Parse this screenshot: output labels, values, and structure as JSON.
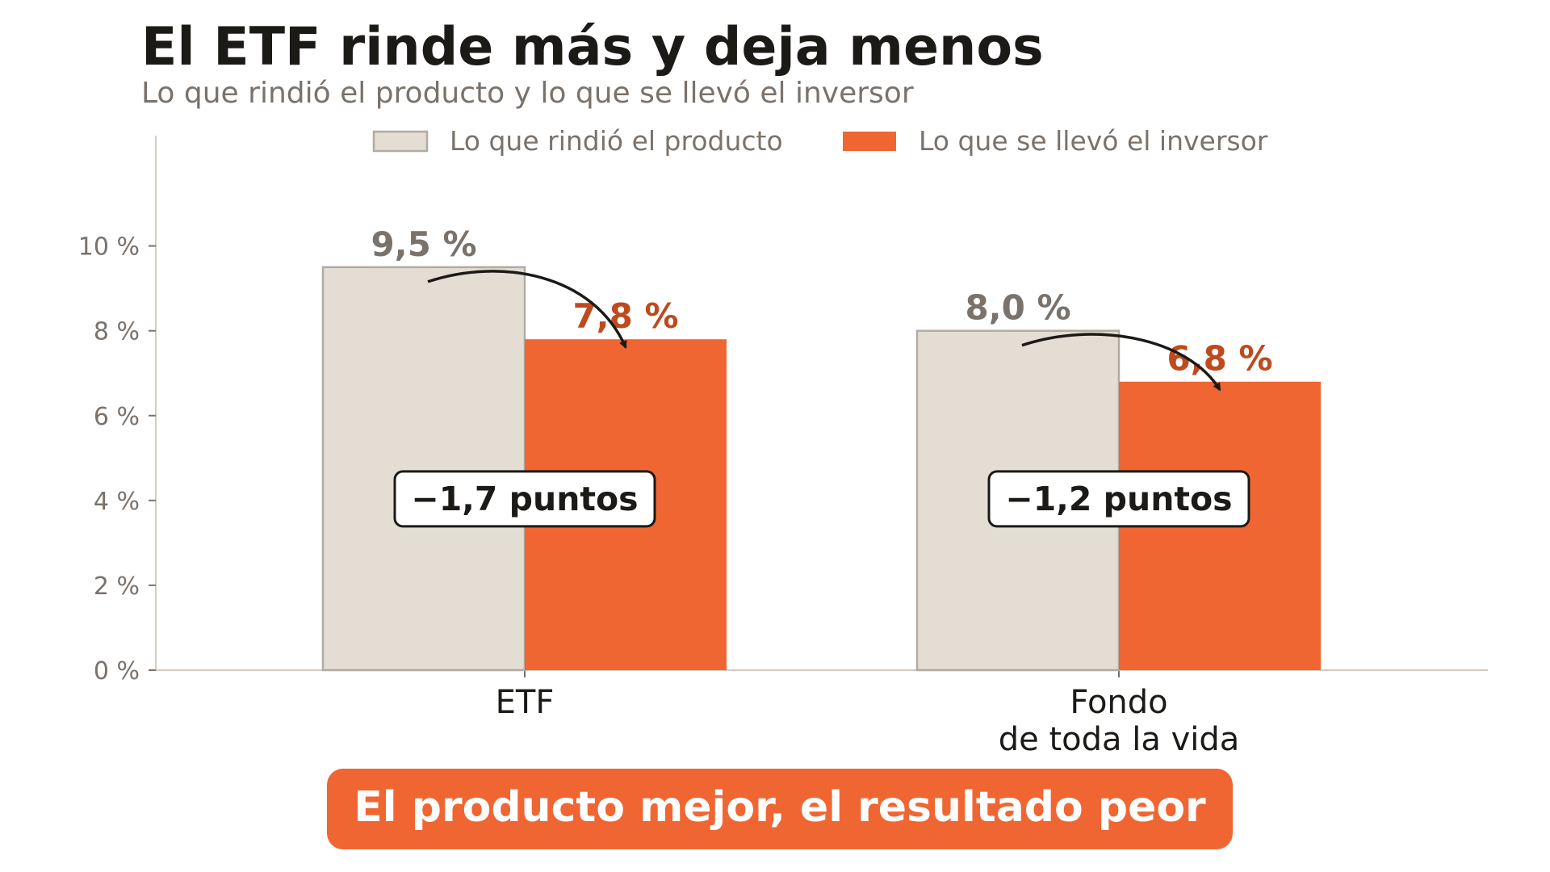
{
  "header": {
    "title": "El ETF rinde más y deja menos",
    "subtitle": "Lo que rindió el producto y lo que se llevó el inversor"
  },
  "colors": {
    "product": "#e4ddd3",
    "product_edge": "#b3aba0",
    "investor": "#f06633",
    "investor_label": "#bf4a1e",
    "product_label": "#7a726b",
    "banner": "#f06633",
    "arrow": "#1c1a17"
  },
  "chart_data": {
    "type": "bar",
    "categories": [
      [
        "ETF"
      ],
      [
        "Fondo",
        "de toda la vida"
      ]
    ],
    "series": [
      {
        "name": "Lo que rindió el producto",
        "values": [
          9.5,
          8.0
        ],
        "labels": [
          "9,5 %",
          "8,0 %"
        ]
      },
      {
        "name": "Lo que se llevó el inversor",
        "values": [
          7.8,
          6.8
        ],
        "labels": [
          "7,8 %",
          "6,8 %"
        ]
      }
    ],
    "differences": [
      "−1,7 puntos",
      "−1,2 puntos"
    ],
    "yticks": [
      0,
      2,
      4,
      6,
      8,
      10
    ],
    "ytick_labels": [
      "0 %",
      "2 %",
      "4 %",
      "6 %",
      "8 %",
      "10 %"
    ],
    "ylim": [
      0,
      12.6
    ],
    "legend_position": "top",
    "grid": false
  },
  "banner": {
    "text": "El producto mejor, el resultado peor"
  }
}
